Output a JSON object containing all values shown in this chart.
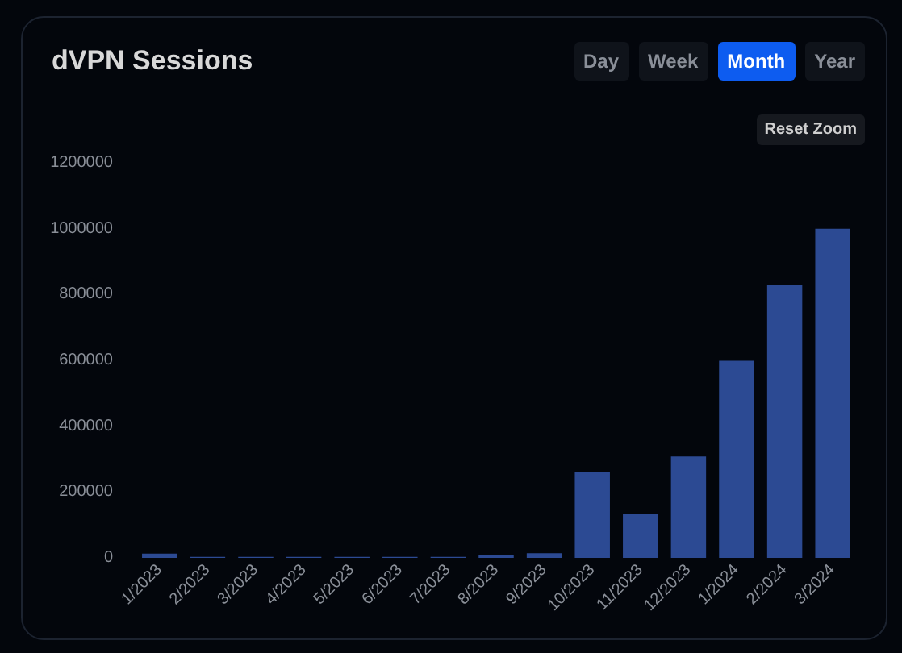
{
  "chart_data": {
    "type": "bar",
    "title": "dVPN Sessions",
    "categories": [
      "1/2023",
      "2/2023",
      "3/2023",
      "4/2023",
      "5/2023",
      "6/2023",
      "7/2023",
      "8/2023",
      "9/2023",
      "10/2023",
      "11/2023",
      "12/2023",
      "1/2024",
      "2/2024",
      "3/2024"
    ],
    "values": [
      13000,
      3000,
      3000,
      3000,
      3000,
      3000,
      3000,
      9000,
      14000,
      262000,
      135000,
      308000,
      599000,
      828000,
      1000000
    ],
    "color": "#2c4a93",
    "ylim": [
      0,
      1200000
    ],
    "yticks": [
      0,
      200000,
      400000,
      600000,
      800000,
      1000000,
      1200000
    ],
    "grid": false,
    "annotations": [
      "Day",
      "Week",
      "Month",
      "Year",
      "Reset Zoom"
    ]
  }
}
